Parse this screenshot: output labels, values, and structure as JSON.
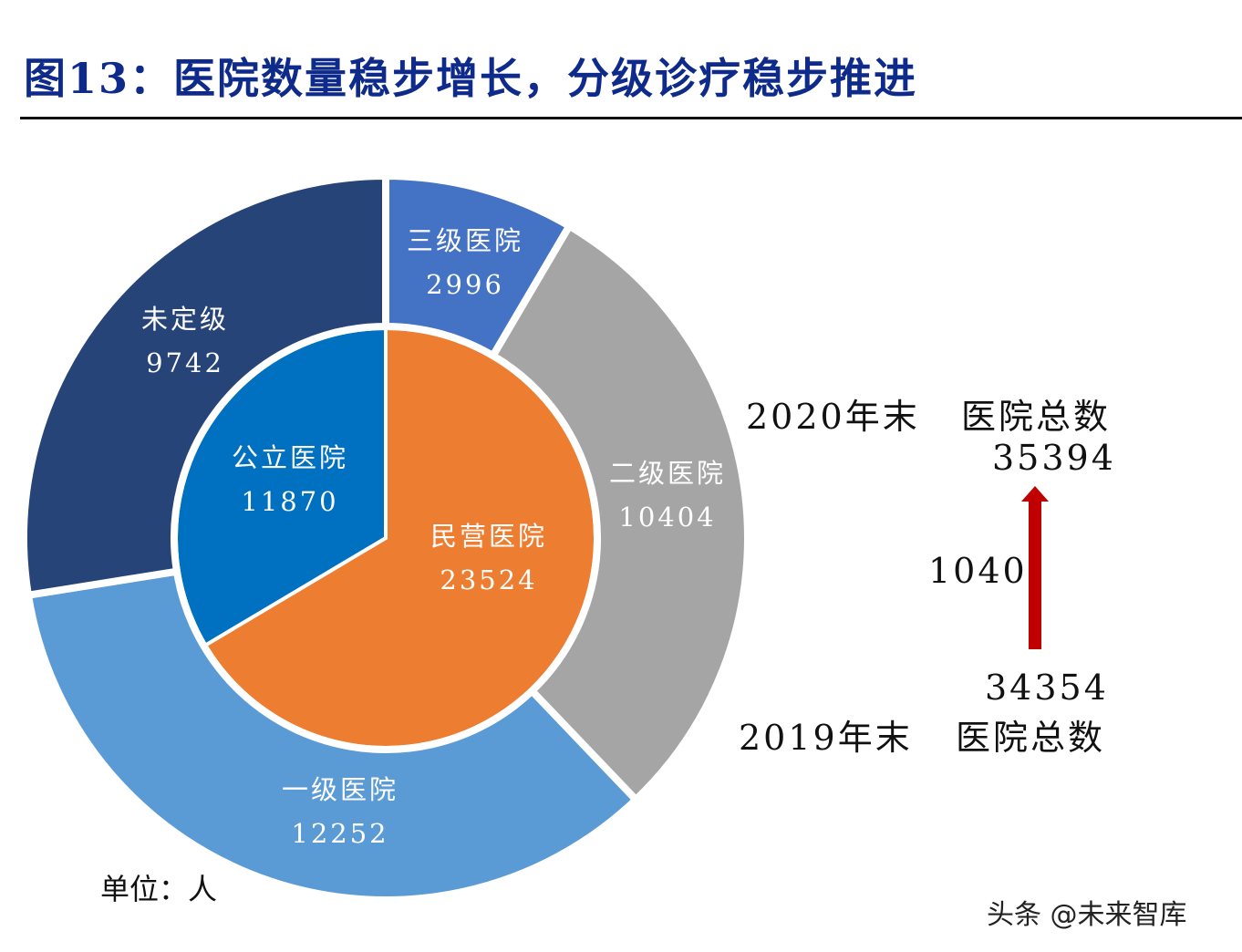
{
  "title": "图13：医院数量稳步增长，分级诊疗稳步推进",
  "chart_data": {
    "type": "pie",
    "title": "图13：医院数量稳步增长，分级诊疗稳步推进",
    "rings": [
      {
        "ring": "inner",
        "slices": [
          {
            "label": "民营医院",
            "value": 23524,
            "color": "#ED7D31"
          },
          {
            "label": "公立医院",
            "value": 11870,
            "color": "#0070C0"
          }
        ]
      },
      {
        "ring": "outer",
        "slices": [
          {
            "label": "三级医院",
            "value": 2996,
            "color": "#4472C4"
          },
          {
            "label": "二级医院",
            "value": 10404,
            "color": "#A5A5A5"
          },
          {
            "label": "一级医院",
            "value": 12252,
            "color": "#5B9BD5"
          },
          {
            "label": "未定级",
            "value": 9742,
            "color": "#264478"
          }
        ]
      }
    ],
    "annotation": {
      "top_label": "2020年末",
      "top_title": "医院总数",
      "top_value": "35394",
      "delta": "1040",
      "bottom_value": "34354",
      "bottom_label": "2019年末",
      "bottom_title": "医院总数",
      "arrow_color": "#C00000"
    },
    "unit": "单位：人"
  },
  "watermark": "头条 @未来智库"
}
